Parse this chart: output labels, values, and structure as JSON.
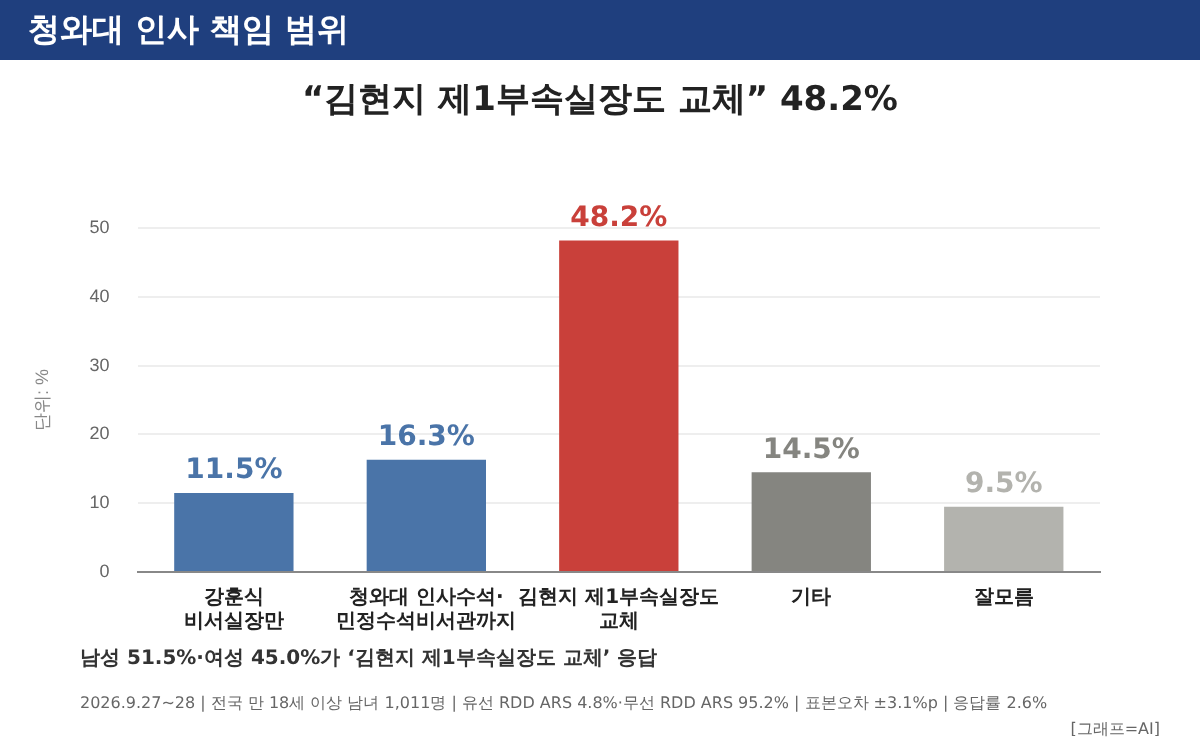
{
  "chart_data": {
    "type": "bar",
    "title": "청와대 인사 책임 범위",
    "subtitle": "“김현지 제1부속실장도 교체” 48.2%",
    "ylabel": "단위: %",
    "categories": [
      "강훈식\n비서실장만",
      "청와대 인사수석·\n민정수석비서관까지",
      "김현지 제1부속실장도\n교체",
      "기타",
      "잘모름"
    ],
    "values": [
      11.5,
      16.3,
      48.2,
      14.5,
      9.5
    ],
    "colors": [
      "#4a74a8",
      "#4a74a8",
      "#c9403a",
      "#858580",
      "#b3b3ae"
    ],
    "value_labels": [
      "11.5%",
      "16.3%",
      "48.2%",
      "14.5%",
      "9.5%"
    ],
    "ylim": [
      0,
      50
    ],
    "yticks": [
      0,
      10,
      20,
      30,
      40,
      50
    ],
    "grid": "y",
    "annotations": [
      "남성 51.5%·여성 45.0%가 ‘김현지 제1부속실장도 교체’ 응답",
      "2026.9.27~28 | 전국 만 18세 이상 남녀 1,011명 | 유선 RDD ARS 4.8%·무선 RDD ARS 95.2% | 표본오차 ±3.1%p | 응답률 2.6%",
      "[그래프=AI]"
    ]
  }
}
